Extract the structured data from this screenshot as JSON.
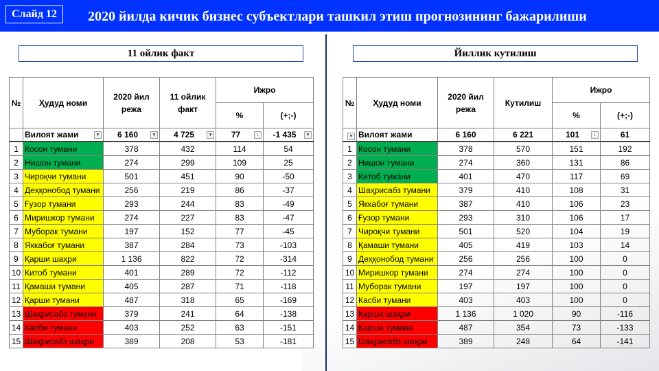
{
  "slide_label": "Слайд 12",
  "title": "2020 йилда кичик бизнес субъектлари ташкил этиш прогнозининг бажарилиши",
  "colors": {
    "header": "#0033ff",
    "green": "#00b050",
    "yellow": "#ffff00",
    "red": "#ff0000"
  },
  "left": {
    "subtitle": "11 ойлик факт",
    "headers": {
      "no": "№",
      "name": "Ҳудуд номи",
      "plan": "2020 йил режа",
      "fact": "11 ойлик факт",
      "exec": "Ижро",
      "pct": "%",
      "diff": "(+;-)"
    },
    "total": {
      "name": "Вилоят жами",
      "plan": "6 160",
      "fact": "4 725",
      "pct": "77",
      "diff": "-1 435"
    },
    "rows": [
      {
        "no": "1",
        "name": "Косон тумани",
        "plan": "378",
        "fact": "432",
        "pct": "114",
        "diff": "54",
        "color": "green"
      },
      {
        "no": "2",
        "name": "Нишон тумани",
        "plan": "274",
        "fact": "299",
        "pct": "109",
        "diff": "25",
        "color": "green"
      },
      {
        "no": "3",
        "name": "Чироқчи тумани",
        "plan": "501",
        "fact": "451",
        "pct": "90",
        "diff": "-50",
        "color": "yellow"
      },
      {
        "no": "4",
        "name": "Деҳқонобод тумани",
        "plan": "256",
        "fact": "219",
        "pct": "86",
        "diff": "-37",
        "color": "yellow"
      },
      {
        "no": "5",
        "name": "Ғузор тумани",
        "plan": "293",
        "fact": "244",
        "pct": "83",
        "diff": "-49",
        "color": "yellow"
      },
      {
        "no": "6",
        "name": "Миришкор тумани",
        "plan": "274",
        "fact": "227",
        "pct": "83",
        "diff": "-47",
        "color": "yellow"
      },
      {
        "no": "7",
        "name": "Муборак тумани",
        "plan": "197",
        "fact": "152",
        "pct": "77",
        "diff": "-45",
        "color": "yellow"
      },
      {
        "no": "8",
        "name": "Яккабоғ тумани",
        "plan": "387",
        "fact": "284",
        "pct": "73",
        "diff": "-103",
        "color": "yellow"
      },
      {
        "no": "9",
        "name": "Қарши шаҳри",
        "plan": "1 136",
        "fact": "822",
        "pct": "72",
        "diff": "-314",
        "color": "yellow"
      },
      {
        "no": "10",
        "name": "Китоб тумани",
        "plan": "401",
        "fact": "289",
        "pct": "72",
        "diff": "-112",
        "color": "yellow"
      },
      {
        "no": "11",
        "name": "Қамаши тумани",
        "plan": "405",
        "fact": "287",
        "pct": "71",
        "diff": "-118",
        "color": "yellow"
      },
      {
        "no": "12",
        "name": "Қарши тумани",
        "plan": "487",
        "fact": "318",
        "pct": "65",
        "diff": "-169",
        "color": "yellow"
      },
      {
        "no": "13",
        "name": "Шаҳрисабз тумани",
        "plan": "379",
        "fact": "241",
        "pct": "64",
        "diff": "-138",
        "color": "red"
      },
      {
        "no": "14",
        "name": "Касби тумани",
        "plan": "403",
        "fact": "252",
        "pct": "63",
        "diff": "-151",
        "color": "red"
      },
      {
        "no": "15",
        "name": "Шаҳрисабз шаҳри",
        "plan": "389",
        "fact": "208",
        "pct": "53",
        "diff": "-181",
        "color": "red"
      }
    ]
  },
  "right": {
    "subtitle": "Йиллик кутилиш",
    "headers": {
      "no": "№",
      "name": "Ҳудуд номи",
      "plan": "2020 йил режа",
      "fact": "Кутилиш",
      "exec": "Ижро",
      "pct": "%",
      "diff": "(+;-)"
    },
    "total": {
      "name": "Вилоят жами",
      "plan": "6 160",
      "fact": "6 221",
      "pct": "101",
      "diff": "61"
    },
    "rows": [
      {
        "no": "1",
        "name": "Косон тумани",
        "plan": "378",
        "fact": "570",
        "pct": "151",
        "diff": "192",
        "color": "green"
      },
      {
        "no": "2",
        "name": "Нишон тумани",
        "plan": "274",
        "fact": "360",
        "pct": "131",
        "diff": "86",
        "color": "green"
      },
      {
        "no": "3",
        "name": "Китоб тумани",
        "plan": "401",
        "fact": "470",
        "pct": "117",
        "diff": "69",
        "color": "green"
      },
      {
        "no": "4",
        "name": "Шаҳрисабз тумани",
        "plan": "379",
        "fact": "410",
        "pct": "108",
        "diff": "31",
        "color": "yellow"
      },
      {
        "no": "5",
        "name": "Яккабоғ тумани",
        "plan": "387",
        "fact": "410",
        "pct": "106",
        "diff": "23",
        "color": "yellow"
      },
      {
        "no": "6",
        "name": "Ғузор тумани",
        "plan": "293",
        "fact": "310",
        "pct": "106",
        "diff": "17",
        "color": "yellow"
      },
      {
        "no": "7",
        "name": "Чироқчи тумани",
        "plan": "501",
        "fact": "520",
        "pct": "104",
        "diff": "19",
        "color": "yellow"
      },
      {
        "no": "8",
        "name": "Қамаши тумани",
        "plan": "405",
        "fact": "419",
        "pct": "103",
        "diff": "14",
        "color": "yellow"
      },
      {
        "no": "9",
        "name": "Деҳқонобод тумани",
        "plan": "256",
        "fact": "256",
        "pct": "100",
        "diff": "0",
        "color": "yellow"
      },
      {
        "no": "10",
        "name": "Миришкор тумани",
        "plan": "274",
        "fact": "274",
        "pct": "100",
        "diff": "0",
        "color": "yellow"
      },
      {
        "no": "11",
        "name": "Муборак тумани",
        "plan": "197",
        "fact": "197",
        "pct": "100",
        "diff": "0",
        "color": "yellow"
      },
      {
        "no": "12",
        "name": "Касби тумани",
        "plan": "403",
        "fact": "403",
        "pct": "100",
        "diff": "0",
        "color": "yellow"
      },
      {
        "no": "13",
        "name": "Қарши шаҳри",
        "plan": "1 136",
        "fact": "1 020",
        "pct": "90",
        "diff": "-116",
        "color": "red"
      },
      {
        "no": "14",
        "name": "Қарши тумани",
        "plan": "487",
        "fact": "354",
        "pct": "73",
        "diff": "-133",
        "color": "red"
      },
      {
        "no": "15",
        "name": "Шаҳрисабз шаҳри",
        "plan": "389",
        "fact": "248",
        "pct": "64",
        "diff": "-141",
        "color": "red"
      }
    ]
  }
}
